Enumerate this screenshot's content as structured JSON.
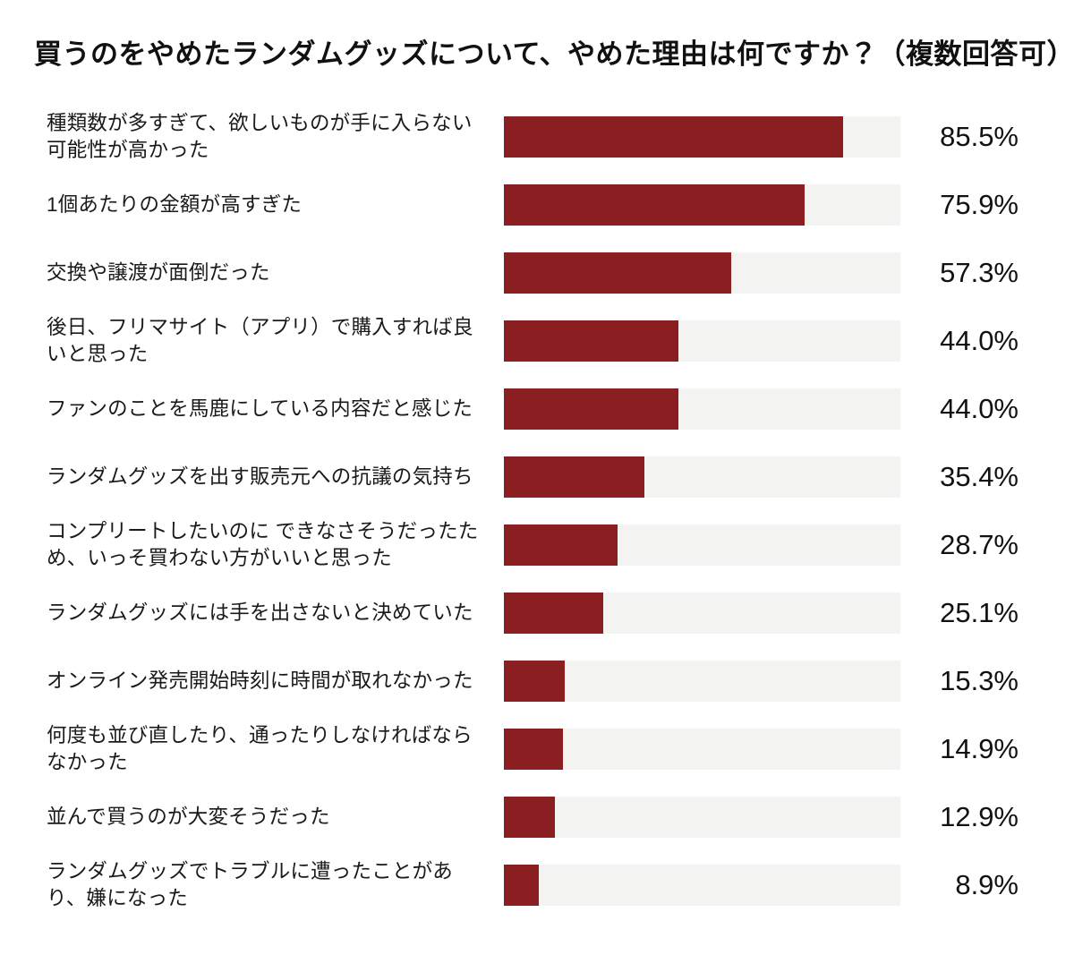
{
  "title": "買うのをやめたランダムグッズについて、やめた理由は何ですか？（複数回答可）",
  "chart_data": {
    "type": "bar",
    "orientation": "horizontal",
    "unit": "%",
    "xlim": [
      0,
      100
    ],
    "grid": false,
    "legend": false,
    "bar_color": "#8B1E21",
    "track_color": "#F3F3F2",
    "categories": [
      "種類数が多すぎて、欲しいものが手に入らない可能性が高かった",
      "1個あたりの金額が高すぎた",
      "交換や譲渡が面倒だった",
      "後日、フリマサイト（アプリ）で購入すれば良いと思った",
      "ファンのことを馬鹿にしている内容だと感じた",
      "ランダムグッズを出す販売元への抗議の気持ち",
      "コンプリートしたいのに できなさそうだったため、いっそ買わない方がいいと思った",
      "ランダムグッズには手を出さないと決めていた",
      "オンライン発売開始時刻に時間が取れなかった",
      "何度も並び直したり、通ったりしなければならなかった",
      "並んで買うのが大変そうだった",
      "ランダムグッズでトラブルに遭ったことがあり、嫌になった"
    ],
    "values": [
      85.5,
      75.9,
      57.3,
      44.0,
      44.0,
      35.4,
      28.7,
      25.1,
      15.3,
      14.9,
      12.9,
      8.9
    ],
    "value_labels": [
      "85.5%",
      "75.9%",
      "57.3%",
      "44.0%",
      "44.0%",
      "35.4%",
      "28.7%",
      "25.1%",
      "15.3%",
      "14.9%",
      "12.9%",
      "8.9%"
    ]
  }
}
